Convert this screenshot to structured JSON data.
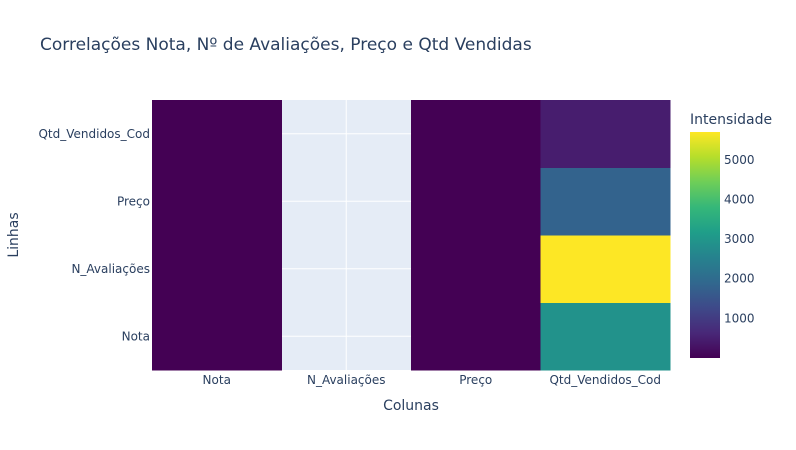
{
  "chart_data": {
    "type": "heatmap",
    "title": "Correlações Nota, Nº de Avaliações, Preço e Qtd Vendidas",
    "xlabel": "Colunas",
    "ylabel": "Linhas",
    "x_categories": [
      "Nota",
      "N_Avaliações",
      "Preço",
      "Qtd_Vendidos_Cod"
    ],
    "y_categories": [
      "Nota",
      "N_Avaliações",
      "Preço",
      "Qtd_Vendidos_Cod"
    ],
    "z": [
      [
        1,
        null,
        1,
        2900
      ],
      [
        1,
        null,
        1,
        5700
      ],
      [
        1,
        null,
        1,
        1800
      ],
      [
        1,
        null,
        1,
        450
      ]
    ],
    "colorscale": "Viridis",
    "zrange": [
      0,
      5700
    ],
    "colorbar": {
      "title": "Intensidade",
      "ticks": [
        1000,
        2000,
        3000,
        4000,
        5000
      ]
    },
    "background_color": "#e5ecf6",
    "grid": true
  }
}
